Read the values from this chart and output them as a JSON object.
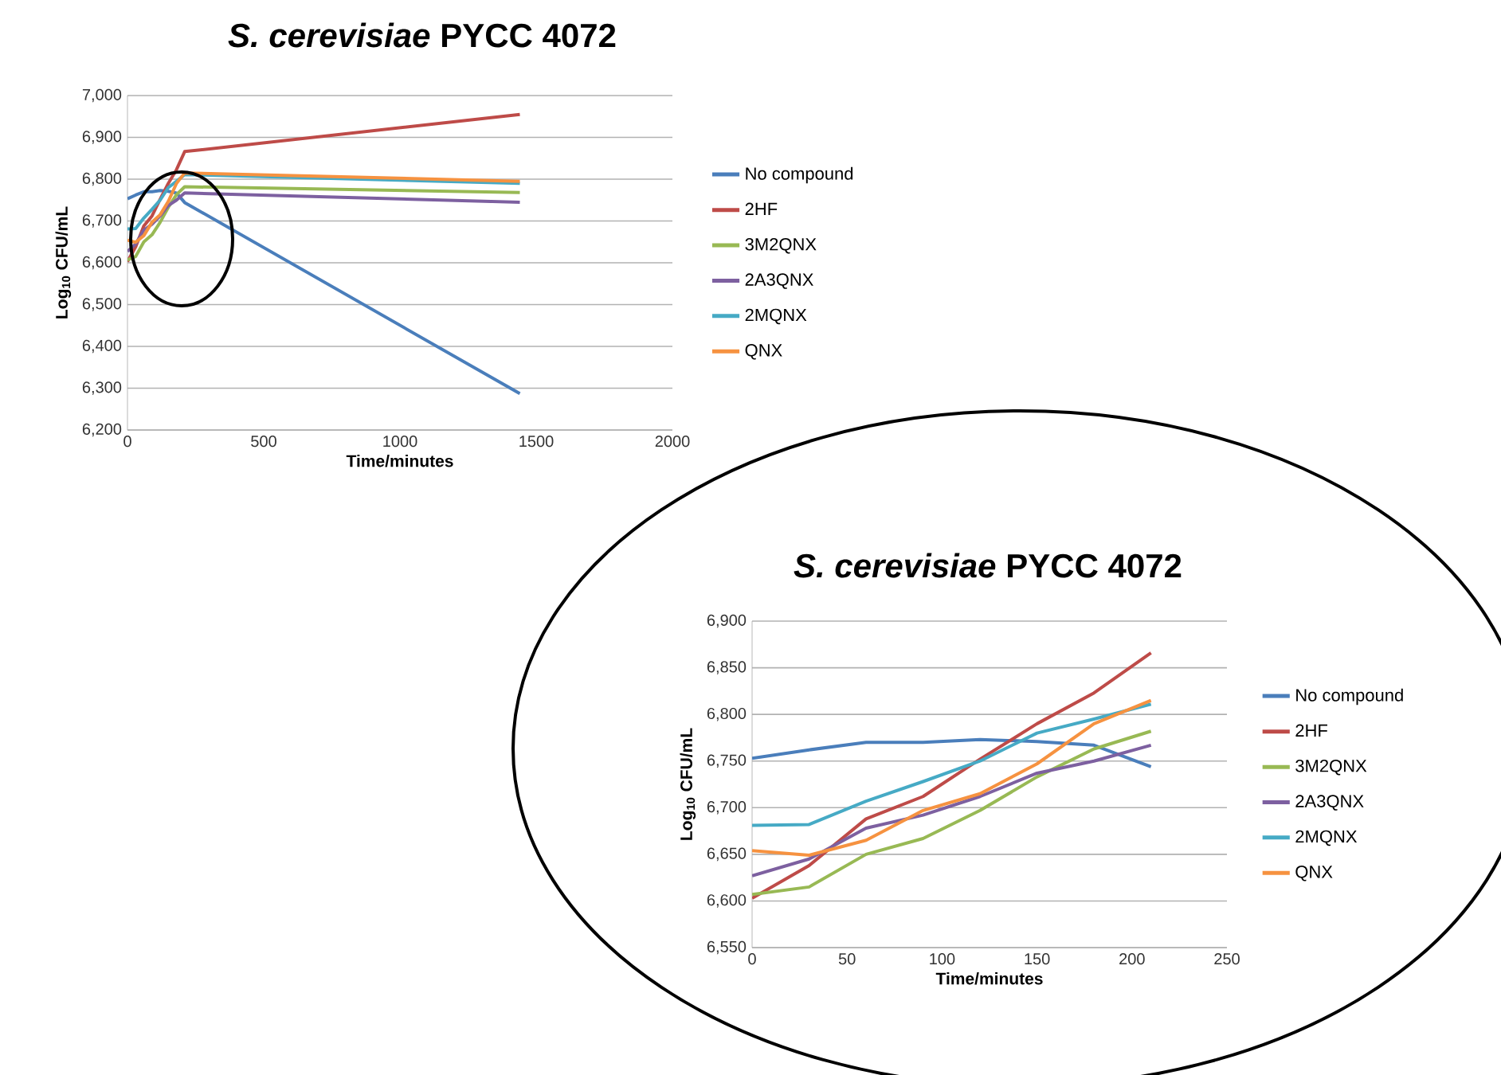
{
  "chart_data": [
    {
      "type": "line",
      "title": "*S. cerevisiae* PYCC 4072",
      "xlabel": "Time/minutes",
      "ylabel": "Log$_{10}$ CFU/mL",
      "x": [
        0,
        30,
        60,
        90,
        120,
        150,
        180,
        210,
        1440
      ],
      "xlim": [
        0,
        2000
      ],
      "xticks": [
        0,
        500,
        1000,
        1500,
        2000
      ],
      "ylim": [
        6200,
        7000
      ],
      "yticks": [
        {
          "value": 6200,
          "label": "6,200"
        },
        {
          "value": 6300,
          "label": "6,300"
        },
        {
          "value": 6400,
          "label": "6,400"
        },
        {
          "value": 6500,
          "label": "6,500"
        },
        {
          "value": 6600,
          "label": "6,600"
        },
        {
          "value": 6700,
          "label": "6,700"
        },
        {
          "value": 6800,
          "label": "6,800"
        },
        {
          "value": 6900,
          "label": "6,900"
        },
        {
          "value": 7000,
          "label": "7,000"
        }
      ],
      "grid": "y",
      "legend": "right",
      "series": [
        {
          "name": "No compound",
          "color": "#4a7ebb",
          "values": [
            6753,
            6762,
            6770,
            6770,
            6773,
            6771,
            6767,
            6744,
            6287
          ]
        },
        {
          "name": "2HF",
          "color": "#be4b48",
          "values": [
            6603,
            6638,
            6688,
            6712,
            6752,
            6790,
            6823,
            6866,
            6955
          ]
        },
        {
          "name": "3M2QNX",
          "color": "#98b954",
          "values": [
            6607,
            6615,
            6650,
            6667,
            6697,
            6733,
            6763,
            6782,
            6768
          ]
        },
        {
          "name": "2A3QNX",
          "color": "#7d60a0",
          "values": [
            6627,
            6645,
            6678,
            6692,
            6712,
            6737,
            6750,
            6767,
            6745
          ]
        },
        {
          "name": "2MQNX",
          "color": "#46aac5",
          "values": [
            6681,
            6682,
            6707,
            6728,
            6750,
            6780,
            6795,
            6811,
            6790
          ]
        },
        {
          "name": "QNX",
          "color": "#f69240",
          "values": [
            6654,
            6649,
            6665,
            6697,
            6715,
            6747,
            6790,
            6815,
            6795
          ]
        }
      ]
    },
    {
      "type": "line",
      "title": "*S. cerevisiae* PYCC 4072",
      "xlabel": "Time/minutes",
      "ylabel": "Log$_{10}$ CFU/mL",
      "x": [
        0,
        30,
        60,
        90,
        120,
        150,
        180,
        210
      ],
      "xlim": [
        0,
        250
      ],
      "xticks": [
        0,
        50,
        100,
        150,
        200,
        250
      ],
      "ylim": [
        6550,
        6900
      ],
      "yticks": [
        {
          "value": 6550,
          "label": "6,550"
        },
        {
          "value": 6600,
          "label": "6,600"
        },
        {
          "value": 6650,
          "label": "6,650"
        },
        {
          "value": 6700,
          "label": "6,700"
        },
        {
          "value": 6750,
          "label": "6,750"
        },
        {
          "value": 6800,
          "label": "6,800"
        },
        {
          "value": 6850,
          "label": "6,850"
        },
        {
          "value": 6900,
          "label": "6,900"
        }
      ],
      "grid": "y",
      "legend": "right",
      "series": [
        {
          "name": "No compound",
          "color": "#4a7ebb",
          "values": [
            6753,
            6762,
            6770,
            6770,
            6773,
            6771,
            6767,
            6744
          ]
        },
        {
          "name": "2HF",
          "color": "#be4b48",
          "values": [
            6603,
            6638,
            6688,
            6712,
            6752,
            6790,
            6823,
            6866
          ]
        },
        {
          "name": "3M2QNX",
          "color": "#98b954",
          "values": [
            6607,
            6615,
            6650,
            6667,
            6697,
            6733,
            6763,
            6782
          ]
        },
        {
          "name": "2A3QNX",
          "color": "#7d60a0",
          "values": [
            6627,
            6645,
            6678,
            6692,
            6712,
            6737,
            6750,
            6767
          ]
        },
        {
          "name": "2MQNX",
          "color": "#46aac5",
          "values": [
            6681,
            6682,
            6707,
            6728,
            6750,
            6780,
            6795,
            6811
          ]
        },
        {
          "name": "QNX",
          "color": "#f69240",
          "values": [
            6654,
            6649,
            6665,
            6697,
            6715,
            6747,
            6790,
            6815
          ]
        }
      ]
    }
  ]
}
